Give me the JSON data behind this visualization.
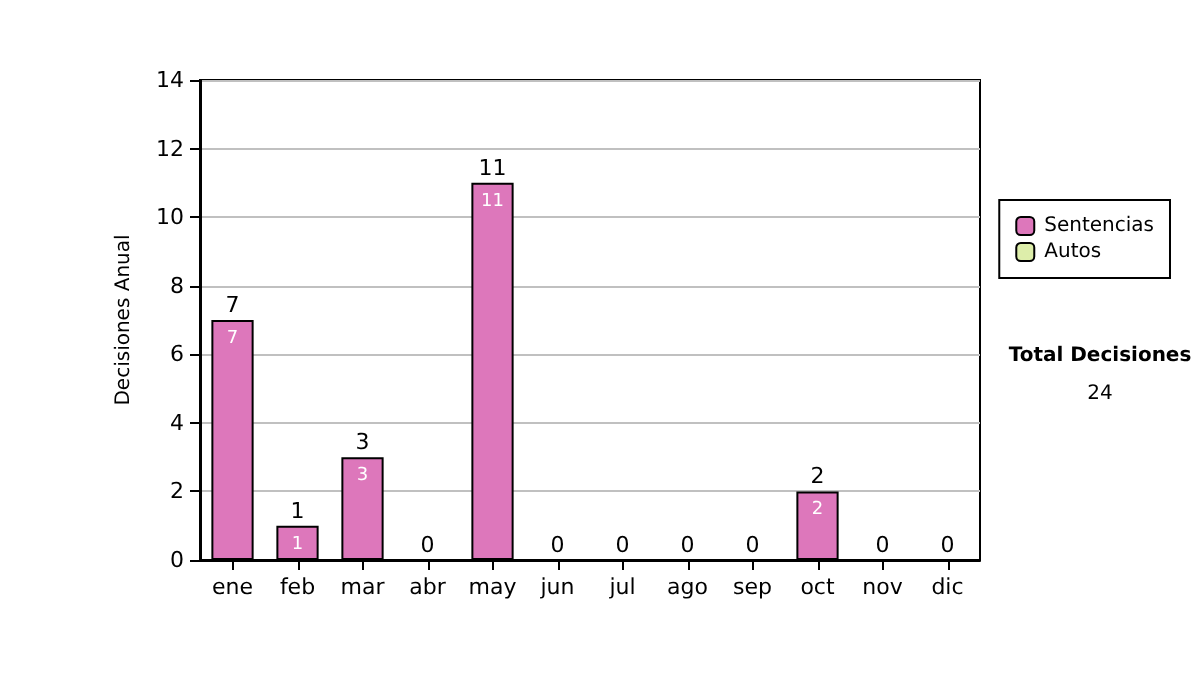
{
  "chart_data": {
    "type": "bar",
    "ylabel": "Decisiones Anual",
    "categories": [
      "ene",
      "feb",
      "mar",
      "abr",
      "may",
      "jun",
      "jul",
      "ago",
      "sep",
      "oct",
      "nov",
      "dic"
    ],
    "stacked": true,
    "series": [
      {
        "name": "Sentencias",
        "color": "#dd77bb",
        "values": [
          7,
          1,
          3,
          0,
          11,
          0,
          0,
          0,
          0,
          2,
          0,
          0
        ],
        "value_labels": [
          "7",
          "1",
          "3",
          null,
          "11",
          null,
          null,
          null,
          null,
          "2",
          null,
          null
        ]
      },
      {
        "name": "Autos",
        "color": "#ddeeaa",
        "values": [
          0,
          0,
          0,
          0,
          0,
          0,
          0,
          0,
          0,
          0,
          0,
          0
        ]
      }
    ],
    "totals": [
      "7",
      "1",
      "3",
      "0",
      "11",
      "0",
      "0",
      "0",
      "0",
      "2",
      "0",
      "0"
    ],
    "ylim": [
      0,
      14
    ],
    "yticks": [
      0,
      2,
      4,
      6,
      8,
      10,
      12,
      14
    ],
    "grid": "y",
    "legend": "right",
    "annotations": [
      "Total Decisiones",
      "24"
    ]
  }
}
